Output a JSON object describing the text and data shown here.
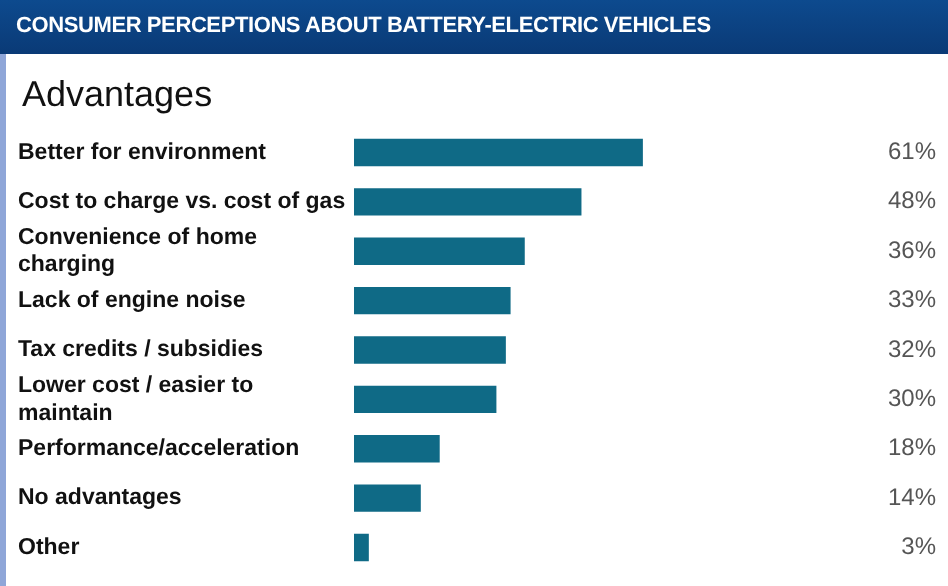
{
  "chart_data": {
    "type": "bar",
    "orientation": "horizontal",
    "title": "CONSUMER PERCEPTIONS ABOUT BATTERY-ELECTRIC VEHICLES",
    "subtitle": "Advantages",
    "categories": [
      "Better for environment",
      "Cost to charge vs. cost of gas",
      "Convenience of home charging",
      "Lack of engine noise",
      "Tax credits / subsidies",
      "Lower cost / easier to maintain",
      "Performance/acceleration",
      "No advantages",
      "Other"
    ],
    "values": [
      61,
      48,
      36,
      33,
      32,
      30,
      18,
      14,
      3
    ],
    "value_labels": [
      "61%",
      "48%",
      "36%",
      "33%",
      "32%",
      "30%",
      "18%",
      "14%",
      "3%"
    ],
    "color": "#0f6a86",
    "legend": false,
    "tick_labels": "y"
  }
}
